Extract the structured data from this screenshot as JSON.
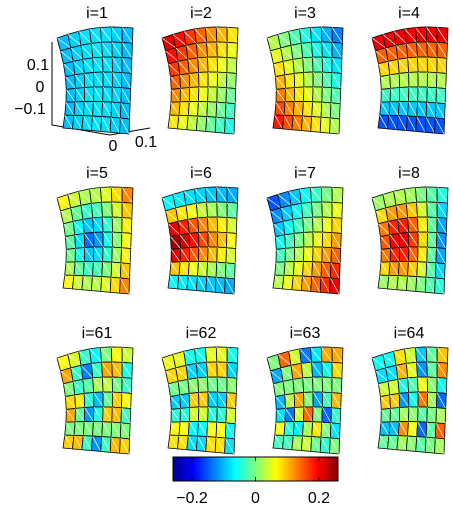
{
  "panels": [
    {
      "title": "i=1"
    },
    {
      "title": "i=2"
    },
    {
      "title": "i=3"
    },
    {
      "title": "i=4"
    },
    {
      "title": "i=5"
    },
    {
      "title": "i=6"
    },
    {
      "title": "i=7"
    },
    {
      "title": "i=8"
    },
    {
      "title": "i=61"
    },
    {
      "title": "i=62"
    },
    {
      "title": "i=63"
    },
    {
      "title": "i=64"
    }
  ],
  "axes": {
    "zticks": [
      "0.1",
      "0",
      "−0.1"
    ],
    "xticks": [
      "0",
      "0.1"
    ]
  },
  "colorbar": {
    "lim": [
      -0.26,
      0.26
    ],
    "ticks": [
      {
        "value": -0.2,
        "label": "−0.2"
      },
      0,
      0.2
    ]
  }
}
